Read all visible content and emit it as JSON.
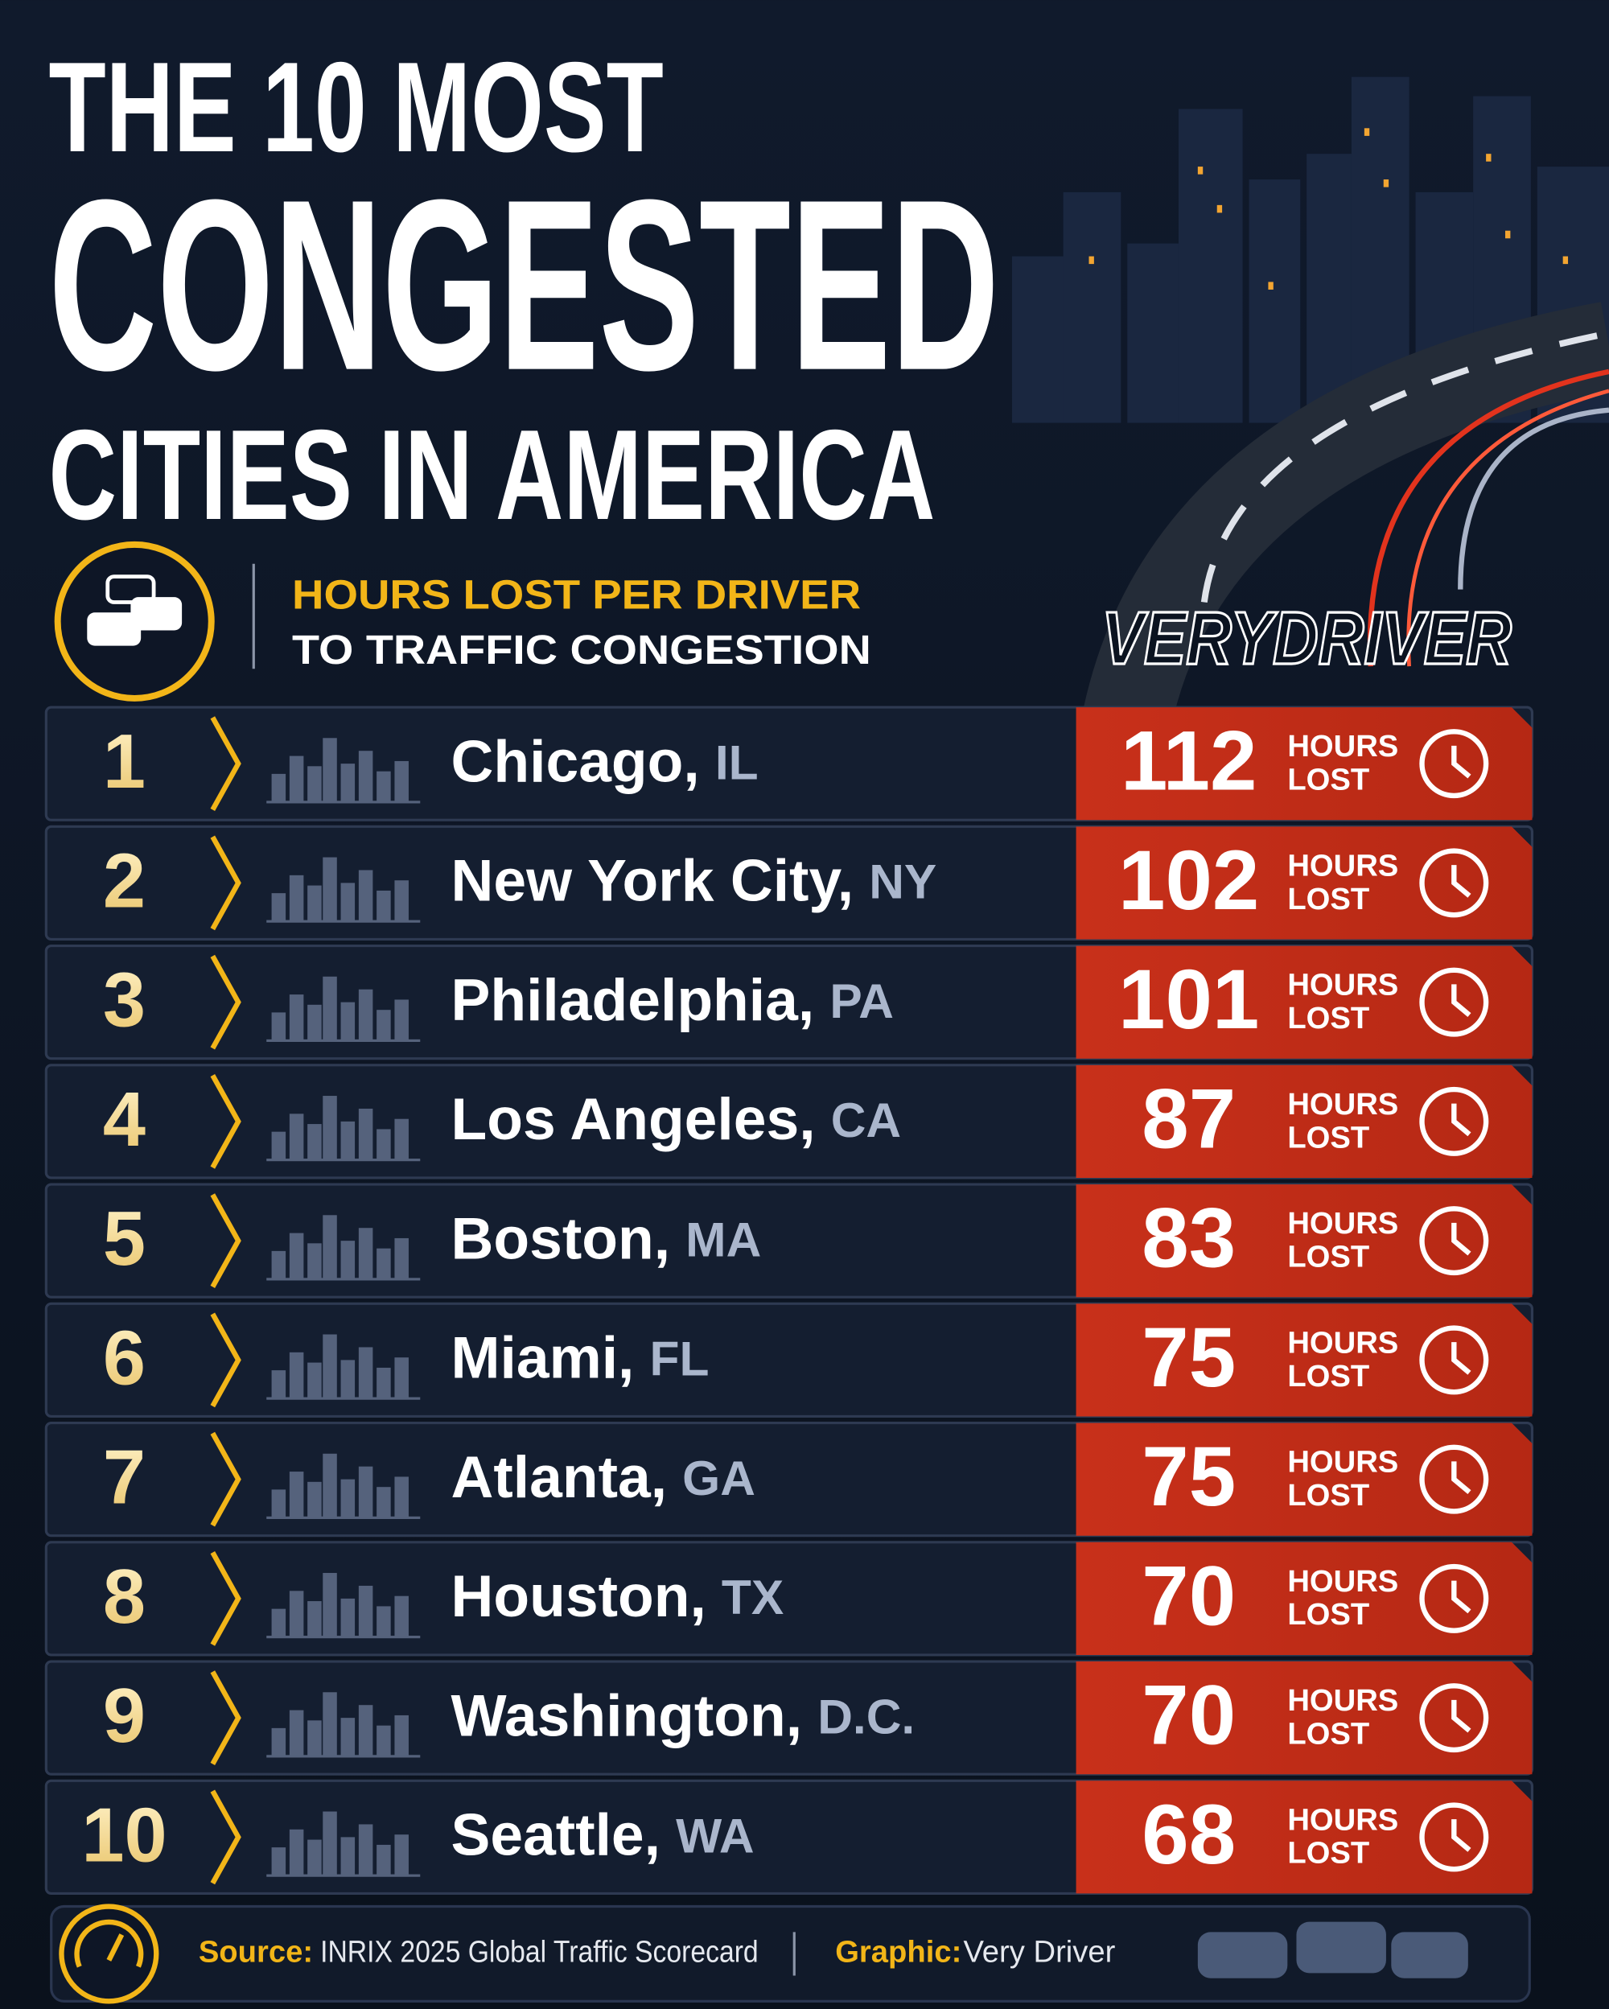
{
  "title": {
    "line1": "THE 10 MOST",
    "line2": "CONGESTED",
    "line3": "CITIES IN AMERICA"
  },
  "subtitle": {
    "line1": "HOURS LOST PER DRIVER",
    "line2": "TO TRAFFIC CONGESTION"
  },
  "brand": "VERYDRIVER",
  "unit": [
    "HOURS",
    "LOST"
  ],
  "rows": [
    {
      "rank": 1,
      "city": "Chicago,",
      "state": "IL",
      "hours": 112
    },
    {
      "rank": 2,
      "city": "New York City,",
      "state": "NY",
      "hours": 102
    },
    {
      "rank": 3,
      "city": "Philadelphia,",
      "state": "PA",
      "hours": 101
    },
    {
      "rank": 4,
      "city": "Los Angeles,",
      "state": "CA",
      "hours": 87
    },
    {
      "rank": 5,
      "city": "Boston,",
      "state": "MA",
      "hours": 83
    },
    {
      "rank": 6,
      "city": "Miami,",
      "state": "FL",
      "hours": 75
    },
    {
      "rank": 7,
      "city": "Atlanta,",
      "state": "GA",
      "hours": 75
    },
    {
      "rank": 8,
      "city": "Houston,",
      "state": "TX",
      "hours": 70
    },
    {
      "rank": 9,
      "city": "Washington,",
      "state": "D.C.",
      "hours": 70
    },
    {
      "rank": 10,
      "city": "Seattle,",
      "state": "WA",
      "hours": 68
    }
  ],
  "footer": {
    "source_label": "Source:",
    "source": "INRIX 2025 Global Traffic Scorecard",
    "graphic_label": "Graphic:",
    "graphic": "Very Driver"
  }
}
